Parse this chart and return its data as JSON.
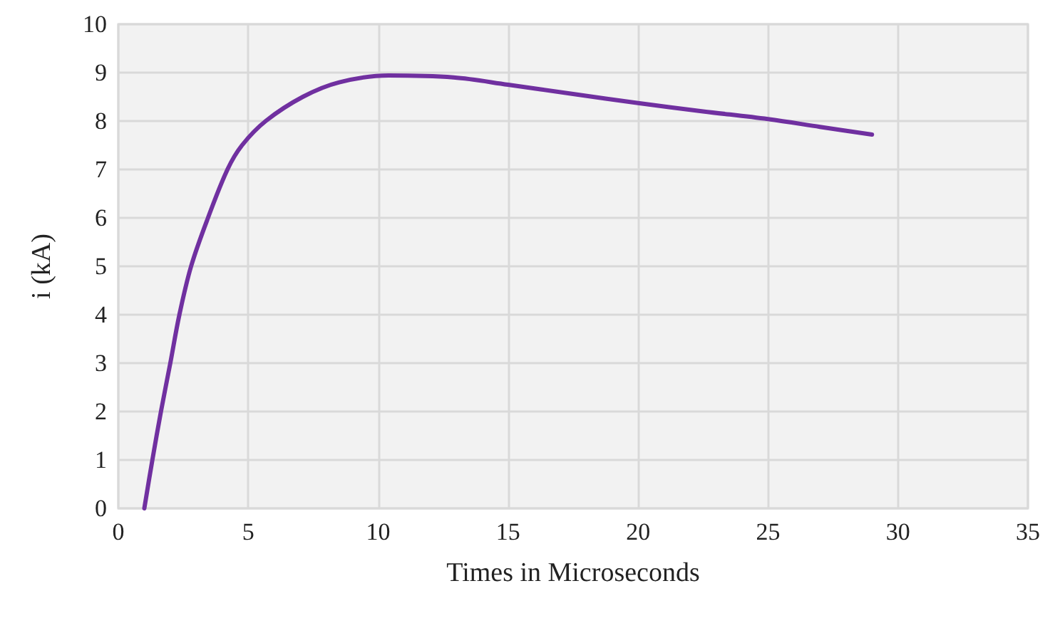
{
  "chart_data": {
    "type": "line",
    "xlabel": "Times in Microseconds",
    "ylabel": "i (kA)",
    "xlim": [
      0,
      35
    ],
    "xticks": [
      0,
      5,
      10,
      15,
      20,
      25,
      30,
      35
    ],
    "ylim": [
      0,
      10
    ],
    "yticks": [
      0,
      1,
      2,
      3,
      4,
      5,
      6,
      7,
      8,
      9,
      10
    ],
    "grid": true,
    "marker": "none",
    "line_style": "solid",
    "series": [
      {
        "color": "#7030a0",
        "x": [
          1,
          1.31,
          1.64,
          2,
          2.35,
          2.8,
          3.45,
          4.2,
          4.76,
          5.67,
          7.1,
          8.5,
          10.4,
          12.9,
          15,
          17.5,
          20,
          22.5,
          25,
          27,
          29
        ],
        "values": [
          0,
          1,
          2,
          3,
          4,
          5,
          6,
          7,
          7.5,
          8,
          8.5,
          8.8,
          8.94,
          8.9,
          8.75,
          8.56,
          8.37,
          8.2,
          8.04,
          7.88,
          7.72
        ]
      }
    ]
  }
}
